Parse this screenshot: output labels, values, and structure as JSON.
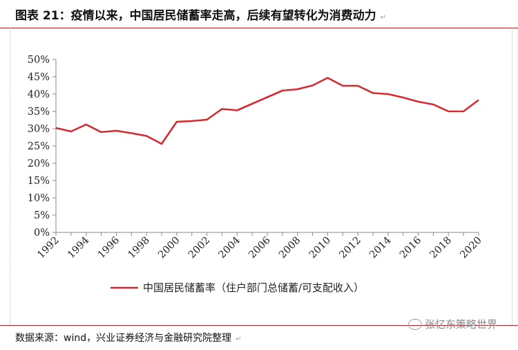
{
  "header": {
    "title": "图表 21：疫情以来，中国居民储蓄率走高，后续有望转化为消费动力"
  },
  "footer": {
    "source": "数据来源：wind，兴业证券经济与金融研究院整理",
    "watermark": "张忆东策略世界"
  },
  "colors": {
    "series_line": "#d42a2f",
    "rule": "#b32024"
  },
  "chart_data": {
    "type": "line",
    "x": [
      1992,
      1993,
      1994,
      1995,
      1996,
      1997,
      1998,
      1999,
      2000,
      2001,
      2002,
      2003,
      2004,
      2005,
      2006,
      2007,
      2008,
      2009,
      2010,
      2011,
      2012,
      2013,
      2014,
      2015,
      2016,
      2017,
      2018,
      2019,
      2020
    ],
    "x_tick_labels": [
      "1992",
      "1994",
      "1996",
      "1998",
      "2000",
      "2002",
      "2004",
      "2006",
      "2008",
      "2010",
      "2012",
      "2014",
      "2016",
      "2018",
      "2020"
    ],
    "y_tick_labels": [
      "0%",
      "5%",
      "10%",
      "15%",
      "20%",
      "25%",
      "30%",
      "35%",
      "40%",
      "45%",
      "50%"
    ],
    "ylim": [
      0,
      0.5
    ],
    "series": [
      {
        "name": "中国居民储蓄率（住户部门总储蓄/可支配收入）",
        "values": [
          0.302,
          0.292,
          0.312,
          0.29,
          0.294,
          0.287,
          0.279,
          0.256,
          0.32,
          0.322,
          0.326,
          0.357,
          0.353,
          0.372,
          0.391,
          0.41,
          0.414,
          0.425,
          0.447,
          0.424,
          0.424,
          0.403,
          0.4,
          0.39,
          0.378,
          0.37,
          0.35,
          0.35,
          0.383
        ]
      }
    ],
    "legend": "bottom",
    "grid": false
  }
}
